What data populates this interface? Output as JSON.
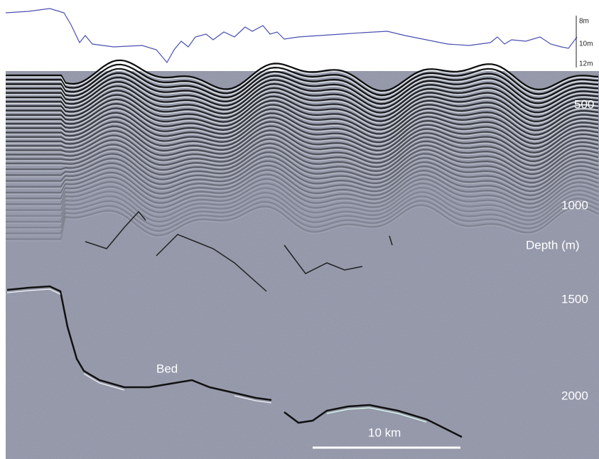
{
  "profile": {
    "scale_labels": [
      "8m",
      "10m",
      "12m"
    ]
  },
  "radargram": {
    "depth_labels": [
      "500",
      "1000",
      "1500",
      "2000"
    ],
    "depth_axis_label": "Depth (m)",
    "bed_label": "Bed",
    "scale_bar_label": "10 km"
  }
}
